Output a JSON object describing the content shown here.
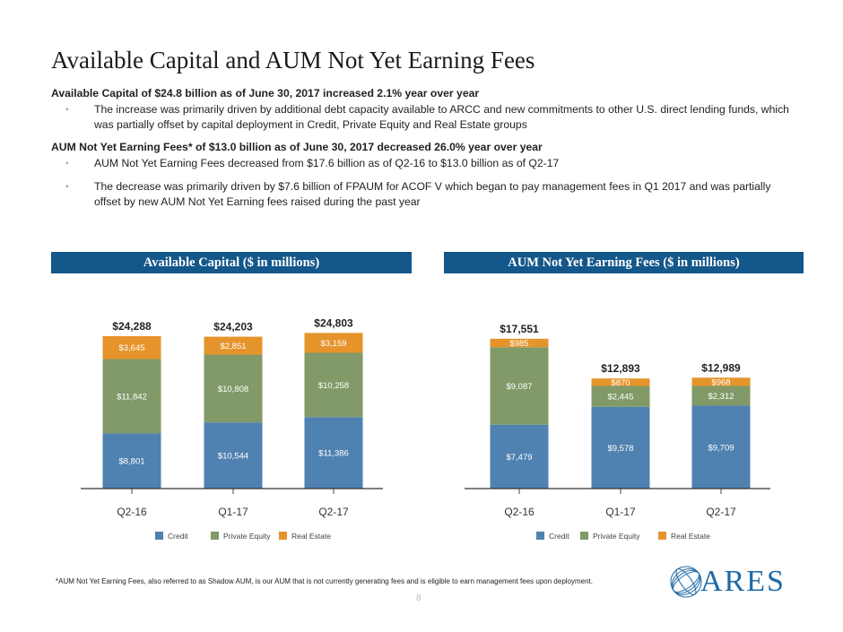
{
  "page": {
    "title": "Available Capital and AUM Not Yet Earning Fees",
    "sections": [
      {
        "heading": "Available Capital of $24.8 billion as of June 30, 2017 increased 2.1% year over year",
        "bullets": [
          "The increase was primarily driven by additional debt capacity available to ARCC and new commitments to other U.S. direct lending funds, which was partially offset by capital deployment in Credit, Private Equity and Real Estate groups"
        ]
      },
      {
        "heading": "AUM Not Yet Earning Fees* of $13.0 billion as of June 30, 2017 decreased 26.0% year over year",
        "bullets": [
          "AUM Not Yet Earning Fees decreased from $17.6 billion as of Q2-16 to $13.0 billion as of Q2-17",
          "The decrease was primarily driven by $7.6 billion of FPAUM for ACOF V which began to pay management fees in Q1 2017 and was partially offset by new AUM Not Yet Earning fees raised during the past year"
        ]
      }
    ],
    "bullet_marker": "◦",
    "footnote": "*AUM Not Yet Earning Fees, also referred to as Shadow AUM, is our AUM that is not currently generating fees and is eligible to earn management fees upon deployment.",
    "page_number": "8",
    "logo_text": "ARES"
  },
  "colors": {
    "credit": "#4f81b1",
    "private_equity": "#829968",
    "real_estate": "#e5942b",
    "header_bg": "#14578a"
  },
  "chart_data": [
    {
      "type": "bar",
      "stacked": true,
      "title": "Available Capital ($ in millions)",
      "categories": [
        "Q2-16",
        "Q1-17",
        "Q2-17"
      ],
      "series": [
        {
          "name": "Credit",
          "values": [
            8801,
            10544,
            11386
          ],
          "labels": [
            "$8,801",
            "$10,544",
            "$11,386"
          ]
        },
        {
          "name": "Private Equity",
          "values": [
            11842,
            10808,
            10258
          ],
          "labels": [
            "$11,842",
            "$10,808",
            "$10,258"
          ]
        },
        {
          "name": "Real Estate",
          "values": [
            3645,
            2851,
            3159
          ],
          "labels": [
            "$3,645",
            "$2,851",
            "$3,159"
          ]
        }
      ],
      "totals": [
        "$24,288",
        "$24,203",
        "$24,803"
      ],
      "ylim": [
        0,
        30000
      ],
      "legend": "bottom"
    },
    {
      "type": "bar",
      "stacked": true,
      "title": "AUM Not Yet Earning Fees ($ in millions)",
      "categories": [
        "Q2-16",
        "Q1-17",
        "Q2-17"
      ],
      "series": [
        {
          "name": "Credit",
          "values": [
            7479,
            9578,
            9709
          ],
          "labels": [
            "$7,479",
            "$9,578",
            "$9,709"
          ]
        },
        {
          "name": "Private Equity",
          "values": [
            9087,
            2445,
            2312
          ],
          "labels": [
            "$9,087",
            "$2,445",
            "$2,312"
          ]
        },
        {
          "name": "Real Estate",
          "values": [
            985,
            870,
            968
          ],
          "labels": [
            "$985",
            "$870",
            "$968"
          ]
        }
      ],
      "totals": [
        "$17,551",
        "$12,893",
        "$12,989"
      ],
      "ylim": [
        0,
        21000
      ],
      "legend": "bottom"
    }
  ]
}
